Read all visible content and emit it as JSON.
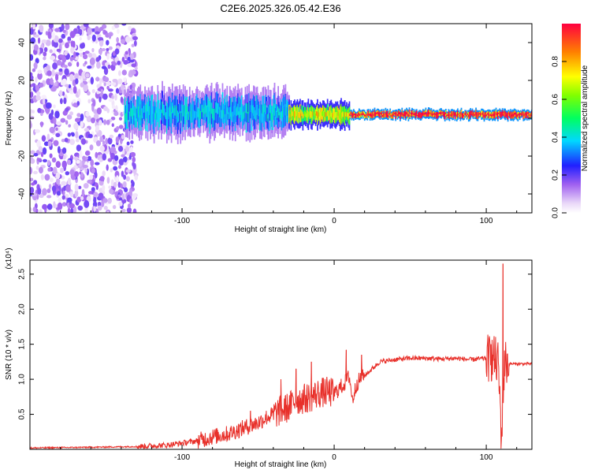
{
  "title": "C2E6.2025.326.05.42.E36",
  "chart_data": [
    {
      "type": "heatmap",
      "xlabel": "Height of straight line (km)",
      "ylabel": "Frequency (Hz)",
      "xlim": [
        -200,
        130
      ],
      "ylim": [
        -50,
        50
      ],
      "xticks": [
        -100,
        0,
        100
      ],
      "yticks": [
        -40,
        -20,
        0,
        20,
        40
      ],
      "colorbar": {
        "label": "Normalized spectral amplitude",
        "range": [
          0,
          1
        ],
        "ticks": [
          0.0,
          0.2,
          0.4,
          0.6,
          0.8
        ]
      },
      "bands": [
        {
          "x_start": -200,
          "x_end": -130,
          "pattern": "scattered noise",
          "amplitude": 0.1
        },
        {
          "x_start": -138,
          "x_end": -30,
          "pattern": "broad band",
          "f_center": 3,
          "f_half_width": 7,
          "amplitude": 0.35
        },
        {
          "x_start": -30,
          "x_end": 10,
          "pattern": "narrowing band",
          "f_center": 2,
          "f_half_width": 4,
          "amplitude": 0.65
        },
        {
          "x_start": 10,
          "x_end": 130,
          "pattern": "narrow line",
          "f_center": 2,
          "f_half_width": 1.5,
          "amplitude": 0.95
        }
      ]
    },
    {
      "type": "line",
      "xlabel": "Height of straight line (km)",
      "ylabel": "SNR (10 * v/v)",
      "y_scale_label": "(x10⁴)",
      "xlim": [
        -200,
        130
      ],
      "ylim": [
        0,
        2.7
      ],
      "xticks": [
        -100,
        0,
        100
      ],
      "yticks": [
        0.5,
        1.0,
        1.5,
        2.0,
        2.5
      ],
      "series": [
        {
          "name": "SNR",
          "color": "#e8302a",
          "x": [
            -200,
            -160,
            -130,
            -110,
            -90,
            -80,
            -70,
            -60,
            -50,
            -45,
            -40,
            -35,
            -30,
            -25,
            -20,
            -15,
            -10,
            -5,
            0,
            5,
            8,
            10,
            12,
            15,
            20,
            25,
            30,
            40,
            50,
            60,
            70,
            80,
            90,
            100,
            105,
            108,
            110,
            112,
            115,
            120,
            130
          ],
          "y": [
            0.02,
            0.03,
            0.04,
            0.06,
            0.12,
            0.18,
            0.22,
            0.3,
            0.38,
            0.45,
            0.5,
            0.55,
            0.6,
            0.7,
            0.72,
            0.75,
            0.8,
            0.82,
            0.8,
            0.9,
            0.97,
            1.05,
            0.7,
            0.95,
            1.05,
            1.15,
            1.25,
            1.28,
            1.3,
            1.3,
            1.29,
            1.3,
            1.28,
            1.3,
            1.3,
            1.2,
            0.15,
            1.25,
            1.22,
            1.22,
            1.22
          ]
        }
      ],
      "peaks": [
        {
          "x": -55,
          "y": 0.55
        },
        {
          "x": -35,
          "y": 1.0
        },
        {
          "x": -25,
          "y": 1.15
        },
        {
          "x": -15,
          "y": 1.25
        },
        {
          "x": 8,
          "y": 1.42
        },
        {
          "x": 18,
          "y": 1.35
        },
        {
          "x": 103,
          "y": 1.5
        },
        {
          "x": 111,
          "y": 2.65
        }
      ]
    }
  ]
}
